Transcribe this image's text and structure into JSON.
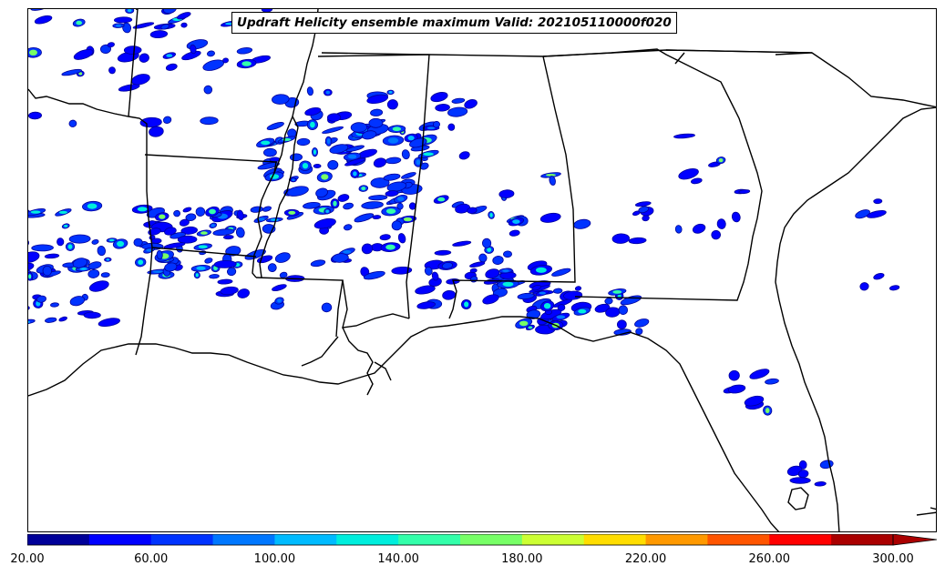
{
  "title": "Updraft Helicity ensemble maximum Valid: 202105110000f020",
  "colorbar": {
    "min": 20,
    "max": 300,
    "step": 20,
    "extend": "max",
    "colors": [
      "#000099",
      "#0000ff",
      "#0033ff",
      "#0077ff",
      "#00bbff",
      "#00eedd",
      "#33ffaa",
      "#77ff66",
      "#ccff33",
      "#ffdd00",
      "#ff9900",
      "#ff5500",
      "#ff0000",
      "#aa0000"
    ],
    "tick_labels": [
      "20.00",
      "60.00",
      "100.00",
      "140.00",
      "180.00",
      "220.00",
      "260.00",
      "300.00"
    ]
  },
  "map": {
    "region": "Southeastern United States",
    "field": "Updraft Helicity ensemble maximum",
    "border_color": "#000000"
  }
}
